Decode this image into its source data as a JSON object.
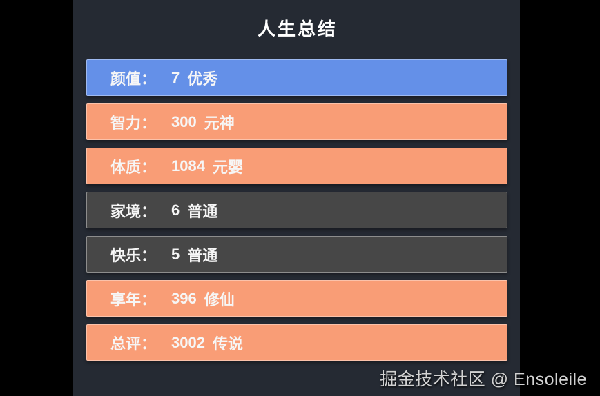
{
  "page": {
    "title": "人生总结",
    "watermark": "掘金技术社区 @ Ensoleile"
  },
  "colors": {
    "background": "#000000",
    "panel": "#252a33",
    "blue": "#6490e8",
    "orange": "#f99d76",
    "gray": "#474747",
    "bar_text": "#f6f6f6",
    "title_text": "#ffffff",
    "watermark_text": "#d2d2d2"
  },
  "stats": [
    {
      "label": "颜值：",
      "value": "7",
      "grade": "优秀",
      "color": "blue"
    },
    {
      "label": "智力：",
      "value": "300",
      "grade": "元神",
      "color": "orange"
    },
    {
      "label": "体质：",
      "value": "1084",
      "grade": "元婴",
      "color": "orange"
    },
    {
      "label": "家境：",
      "value": "6",
      "grade": "普通",
      "color": "gray"
    },
    {
      "label": "快乐：",
      "value": "5",
      "grade": "普通",
      "color": "gray"
    },
    {
      "label": "享年：",
      "value": "396",
      "grade": "修仙",
      "color": "orange"
    },
    {
      "label": "总评：",
      "value": "3002",
      "grade": "传说",
      "color": "orange"
    }
  ]
}
